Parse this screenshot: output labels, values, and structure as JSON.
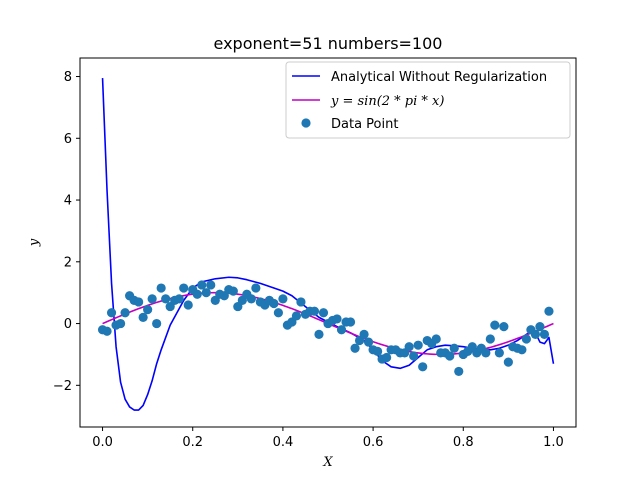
{
  "chart_data": {
    "type": "line",
    "title": "exponent=51 numbers=100",
    "xlabel": "X",
    "ylabel": "y",
    "xlim": [
      -0.05,
      1.05
    ],
    "ylim": [
      -3.35,
      8.6
    ],
    "xticks": [
      0.0,
      0.2,
      0.4,
      0.6,
      0.8,
      1.0
    ],
    "xtick_labels": [
      "0.0",
      "0.2",
      "0.4",
      "0.6",
      "0.8",
      "1.0"
    ],
    "yticks": [
      -2,
      0,
      2,
      4,
      6,
      8
    ],
    "ytick_labels": [
      "−2",
      "0",
      "2",
      "4",
      "6",
      "8"
    ],
    "grid": false,
    "legend_position": "top-right",
    "series": [
      {
        "name": "Analytical Without Regularization",
        "type": "line",
        "color": "#0000ff",
        "x": [
          0.0,
          0.01,
          0.02,
          0.03,
          0.04,
          0.05,
          0.06,
          0.07,
          0.08,
          0.09,
          0.1,
          0.11,
          0.12,
          0.13,
          0.15,
          0.18,
          0.2,
          0.22,
          0.25,
          0.28,
          0.3,
          0.32,
          0.35,
          0.38,
          0.4,
          0.42,
          0.45,
          0.48,
          0.5,
          0.52,
          0.55,
          0.58,
          0.6,
          0.62,
          0.64,
          0.66,
          0.68,
          0.7,
          0.72,
          0.74,
          0.76,
          0.78,
          0.8,
          0.82,
          0.84,
          0.86,
          0.88,
          0.9,
          0.92,
          0.94,
          0.95,
          0.96,
          0.97,
          0.98,
          0.99,
          1.0
        ],
        "y": [
          7.95,
          4.3,
          1.3,
          -0.75,
          -1.9,
          -2.45,
          -2.7,
          -2.8,
          -2.8,
          -2.65,
          -2.3,
          -1.85,
          -1.3,
          -0.85,
          -0.05,
          0.75,
          1.15,
          1.35,
          1.45,
          1.5,
          1.48,
          1.42,
          1.3,
          1.15,
          1.05,
          0.9,
          0.55,
          0.2,
          0.05,
          -0.1,
          -0.3,
          -0.55,
          -0.85,
          -1.2,
          -1.4,
          -1.45,
          -1.35,
          -1.1,
          -0.85,
          -0.75,
          -0.7,
          -0.72,
          -0.75,
          -0.8,
          -0.82,
          -0.85,
          -0.8,
          -0.7,
          -0.55,
          -0.35,
          -0.25,
          -0.3,
          -0.6,
          -0.65,
          -0.45,
          -1.3
        ]
      },
      {
        "name": "y = sin(2 * pi * x)",
        "type": "line",
        "color": "#c000c0",
        "function": "sin(2*pi*x)",
        "x_range": [
          0.0,
          1.0
        ]
      },
      {
        "name": "Data Point",
        "type": "scatter",
        "color": "#1f77b4",
        "x": [
          0.0,
          0.01,
          0.02,
          0.03,
          0.04,
          0.05,
          0.06,
          0.07,
          0.08,
          0.09,
          0.1,
          0.11,
          0.12,
          0.13,
          0.14,
          0.15,
          0.16,
          0.17,
          0.18,
          0.19,
          0.2,
          0.21,
          0.22,
          0.23,
          0.24,
          0.25,
          0.26,
          0.27,
          0.28,
          0.29,
          0.3,
          0.31,
          0.32,
          0.33,
          0.34,
          0.35,
          0.36,
          0.37,
          0.38,
          0.39,
          0.4,
          0.41,
          0.42,
          0.43,
          0.44,
          0.45,
          0.46,
          0.47,
          0.48,
          0.49,
          0.5,
          0.51,
          0.52,
          0.53,
          0.54,
          0.55,
          0.56,
          0.57,
          0.58,
          0.59,
          0.6,
          0.61,
          0.62,
          0.63,
          0.64,
          0.65,
          0.66,
          0.67,
          0.68,
          0.69,
          0.7,
          0.71,
          0.72,
          0.73,
          0.74,
          0.75,
          0.76,
          0.77,
          0.78,
          0.79,
          0.8,
          0.81,
          0.82,
          0.83,
          0.84,
          0.85,
          0.86,
          0.87,
          0.88,
          0.89,
          0.9,
          0.91,
          0.92,
          0.93,
          0.94,
          0.95,
          0.96,
          0.97,
          0.98,
          0.99
        ],
        "y": [
          -0.2,
          -0.25,
          0.35,
          -0.05,
          0.0,
          0.35,
          0.9,
          0.75,
          0.7,
          0.2,
          0.45,
          0.8,
          0.0,
          1.15,
          0.8,
          0.55,
          0.75,
          0.8,
          1.15,
          0.6,
          1.1,
          0.95,
          1.25,
          1.0,
          1.25,
          0.75,
          0.95,
          0.9,
          1.1,
          1.05,
          0.55,
          0.75,
          0.95,
          0.8,
          1.15,
          0.7,
          0.6,
          0.75,
          0.65,
          0.35,
          0.8,
          -0.05,
          0.05,
          0.25,
          0.7,
          0.3,
          0.4,
          0.4,
          -0.35,
          0.35,
          0.0,
          0.1,
          0.15,
          -0.2,
          0.05,
          0.05,
          -0.8,
          -0.55,
          -0.35,
          -0.6,
          -0.85,
          -0.9,
          -1.15,
          -1.1,
          -0.85,
          -0.85,
          -0.95,
          -0.95,
          -0.75,
          -1.05,
          -0.7,
          -1.4,
          -0.55,
          -0.65,
          -0.5,
          -0.95,
          -0.95,
          -1.05,
          -0.8,
          -1.55,
          -1.0,
          -0.9,
          -0.75,
          -0.95,
          -0.8,
          -0.95,
          -0.5,
          -0.05,
          -0.95,
          -0.1,
          -1.25,
          -0.75,
          -0.8,
          -0.85,
          -0.5,
          -0.2,
          -0.35,
          -0.1,
          -0.35,
          0.4
        ]
      }
    ]
  }
}
